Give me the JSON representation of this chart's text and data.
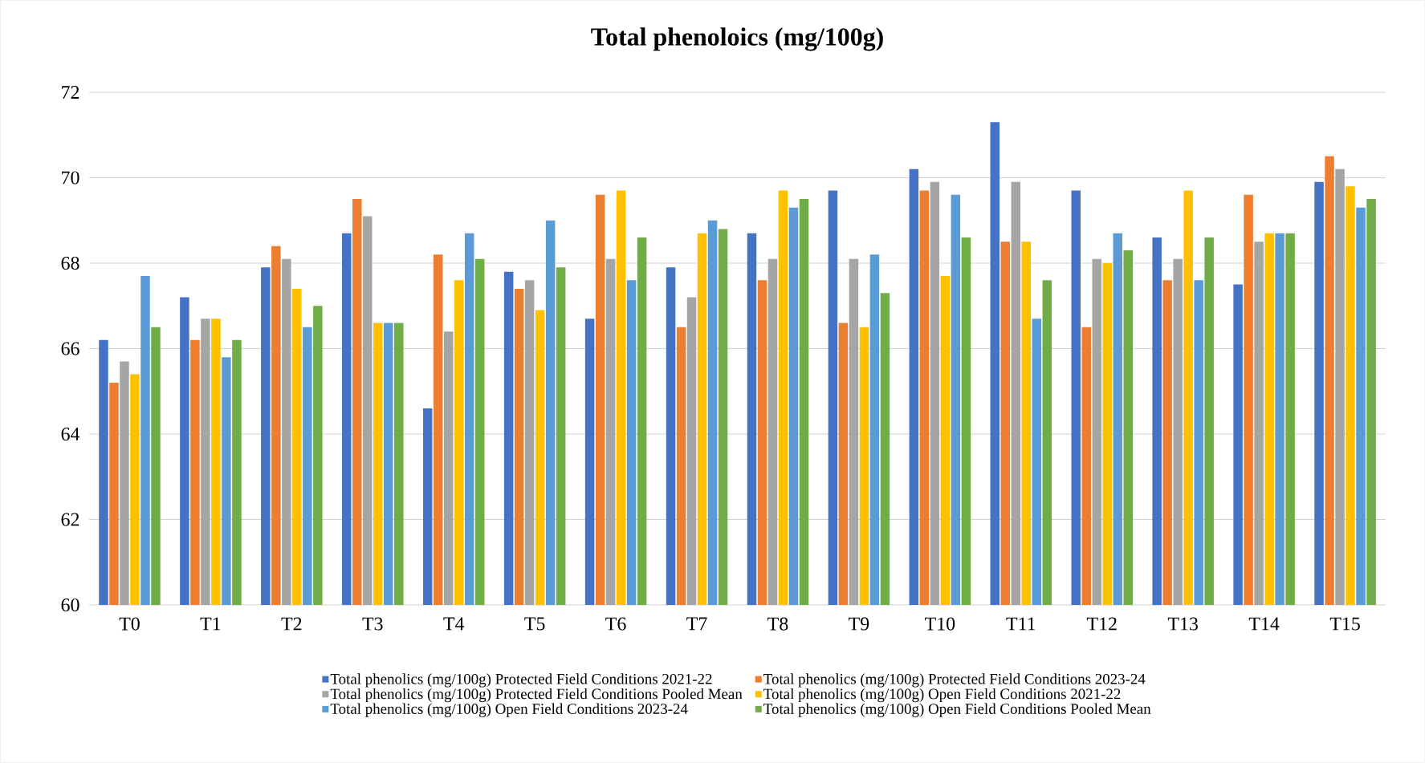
{
  "chart_data": {
    "type": "bar",
    "title": "Total phenoloics (mg/100g)",
    "categories": [
      "T0",
      "T1",
      "T2",
      "T3",
      "T4",
      "T5",
      "T6",
      "T7",
      "T8",
      "T9",
      "T10",
      "T11",
      "T12",
      "T13",
      "T14",
      "T15"
    ],
    "series": [
      {
        "name": "Total phenolics (mg/100g) Protected Field Conditions  2021-22",
        "color": "#4472c4",
        "values": [
          66.2,
          67.2,
          67.9,
          68.7,
          64.6,
          67.8,
          66.7,
          67.9,
          68.7,
          69.7,
          70.2,
          71.3,
          69.7,
          68.6,
          67.5,
          69.9
        ]
      },
      {
        "name": "Total phenolics (mg/100g) Protected Field Conditions  2023-24",
        "color": "#ed7d31",
        "values": [
          65.2,
          66.2,
          68.4,
          69.5,
          68.2,
          67.4,
          69.6,
          66.5,
          67.6,
          66.6,
          69.7,
          68.5,
          66.5,
          67.6,
          69.6,
          70.5
        ]
      },
      {
        "name": "Total phenolics (mg/100g) Protected Field Conditions  Pooled Mean",
        "color": "#a5a5a5",
        "values": [
          65.7,
          66.7,
          68.1,
          69.1,
          66.4,
          67.6,
          68.1,
          67.2,
          68.1,
          68.1,
          69.9,
          69.9,
          68.1,
          68.1,
          68.5,
          70.2
        ]
      },
      {
        "name": "Total phenolics (mg/100g) Open Field Conditions 2021-22",
        "color": "#ffc000",
        "values": [
          65.4,
          66.7,
          67.4,
          66.6,
          67.6,
          66.9,
          69.7,
          68.7,
          69.7,
          66.5,
          67.7,
          68.5,
          68.0,
          69.7,
          68.7,
          69.8
        ]
      },
      {
        "name": "Total phenolics (mg/100g) Open Field Conditions 2023-24",
        "color": "#5b9bd5",
        "values": [
          67.7,
          65.8,
          66.5,
          66.6,
          68.7,
          69.0,
          67.6,
          69.0,
          69.3,
          68.2,
          69.6,
          66.7,
          68.7,
          67.6,
          68.7,
          69.3
        ]
      },
      {
        "name": "Total phenolics (mg/100g) Open Field Conditions Pooled Mean",
        "color": "#70ad47",
        "values": [
          66.5,
          66.2,
          67.0,
          66.6,
          68.1,
          67.9,
          68.6,
          68.8,
          69.5,
          67.3,
          68.6,
          67.6,
          68.3,
          68.6,
          68.7,
          69.5
        ]
      }
    ],
    "ylim": [
      60,
      72
    ],
    "yticks": [
      60,
      62,
      64,
      66,
      68,
      70,
      72
    ],
    "grid": "y",
    "legend": "bottom"
  }
}
